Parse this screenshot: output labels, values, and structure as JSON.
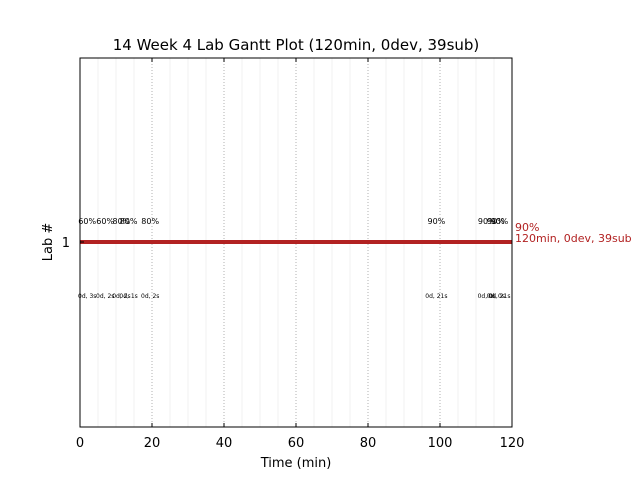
{
  "chart_data": {
    "type": "gantt",
    "title": "14 Week 4 Lab Gantt Plot (120min, 0dev, 39sub)",
    "xlabel": "Time (min)",
    "ylabel": "Lab #",
    "xlim": [
      0,
      120
    ],
    "x_ticks": [
      "0",
      "20",
      "40",
      "60",
      "80",
      "100",
      "120"
    ],
    "y_ticks": [
      "1"
    ],
    "grid": "major vertical dotted lines",
    "lab_row": 1,
    "bar": {
      "start": 0,
      "end": 120,
      "color": "#b22222"
    },
    "end_label": {
      "line1": "90%",
      "line2": "120min, 0dev, 39sub"
    },
    "submissions": [
      {
        "x": 2,
        "score": "60%",
        "time": "0d, 3s"
      },
      {
        "x": 7,
        "score": "60%",
        "time": "0d, 2s"
      },
      {
        "x": 11.5,
        "score": "80%",
        "time": "0d, 2s"
      },
      {
        "x": 13.5,
        "score": "80%",
        "time": "0d, 1s"
      },
      {
        "x": 19.5,
        "score": "80%",
        "time": "0d, 2s"
      },
      {
        "x": 99,
        "score": "90%",
        "time": "0d, 21s"
      },
      {
        "x": 113,
        "score": "90%",
        "time": "0d, 0s"
      },
      {
        "x": 115.5,
        "score": "90%",
        "time": "0d, 0s"
      },
      {
        "x": 116.5,
        "score": "90%",
        "time": "0d, 21s"
      }
    ]
  }
}
